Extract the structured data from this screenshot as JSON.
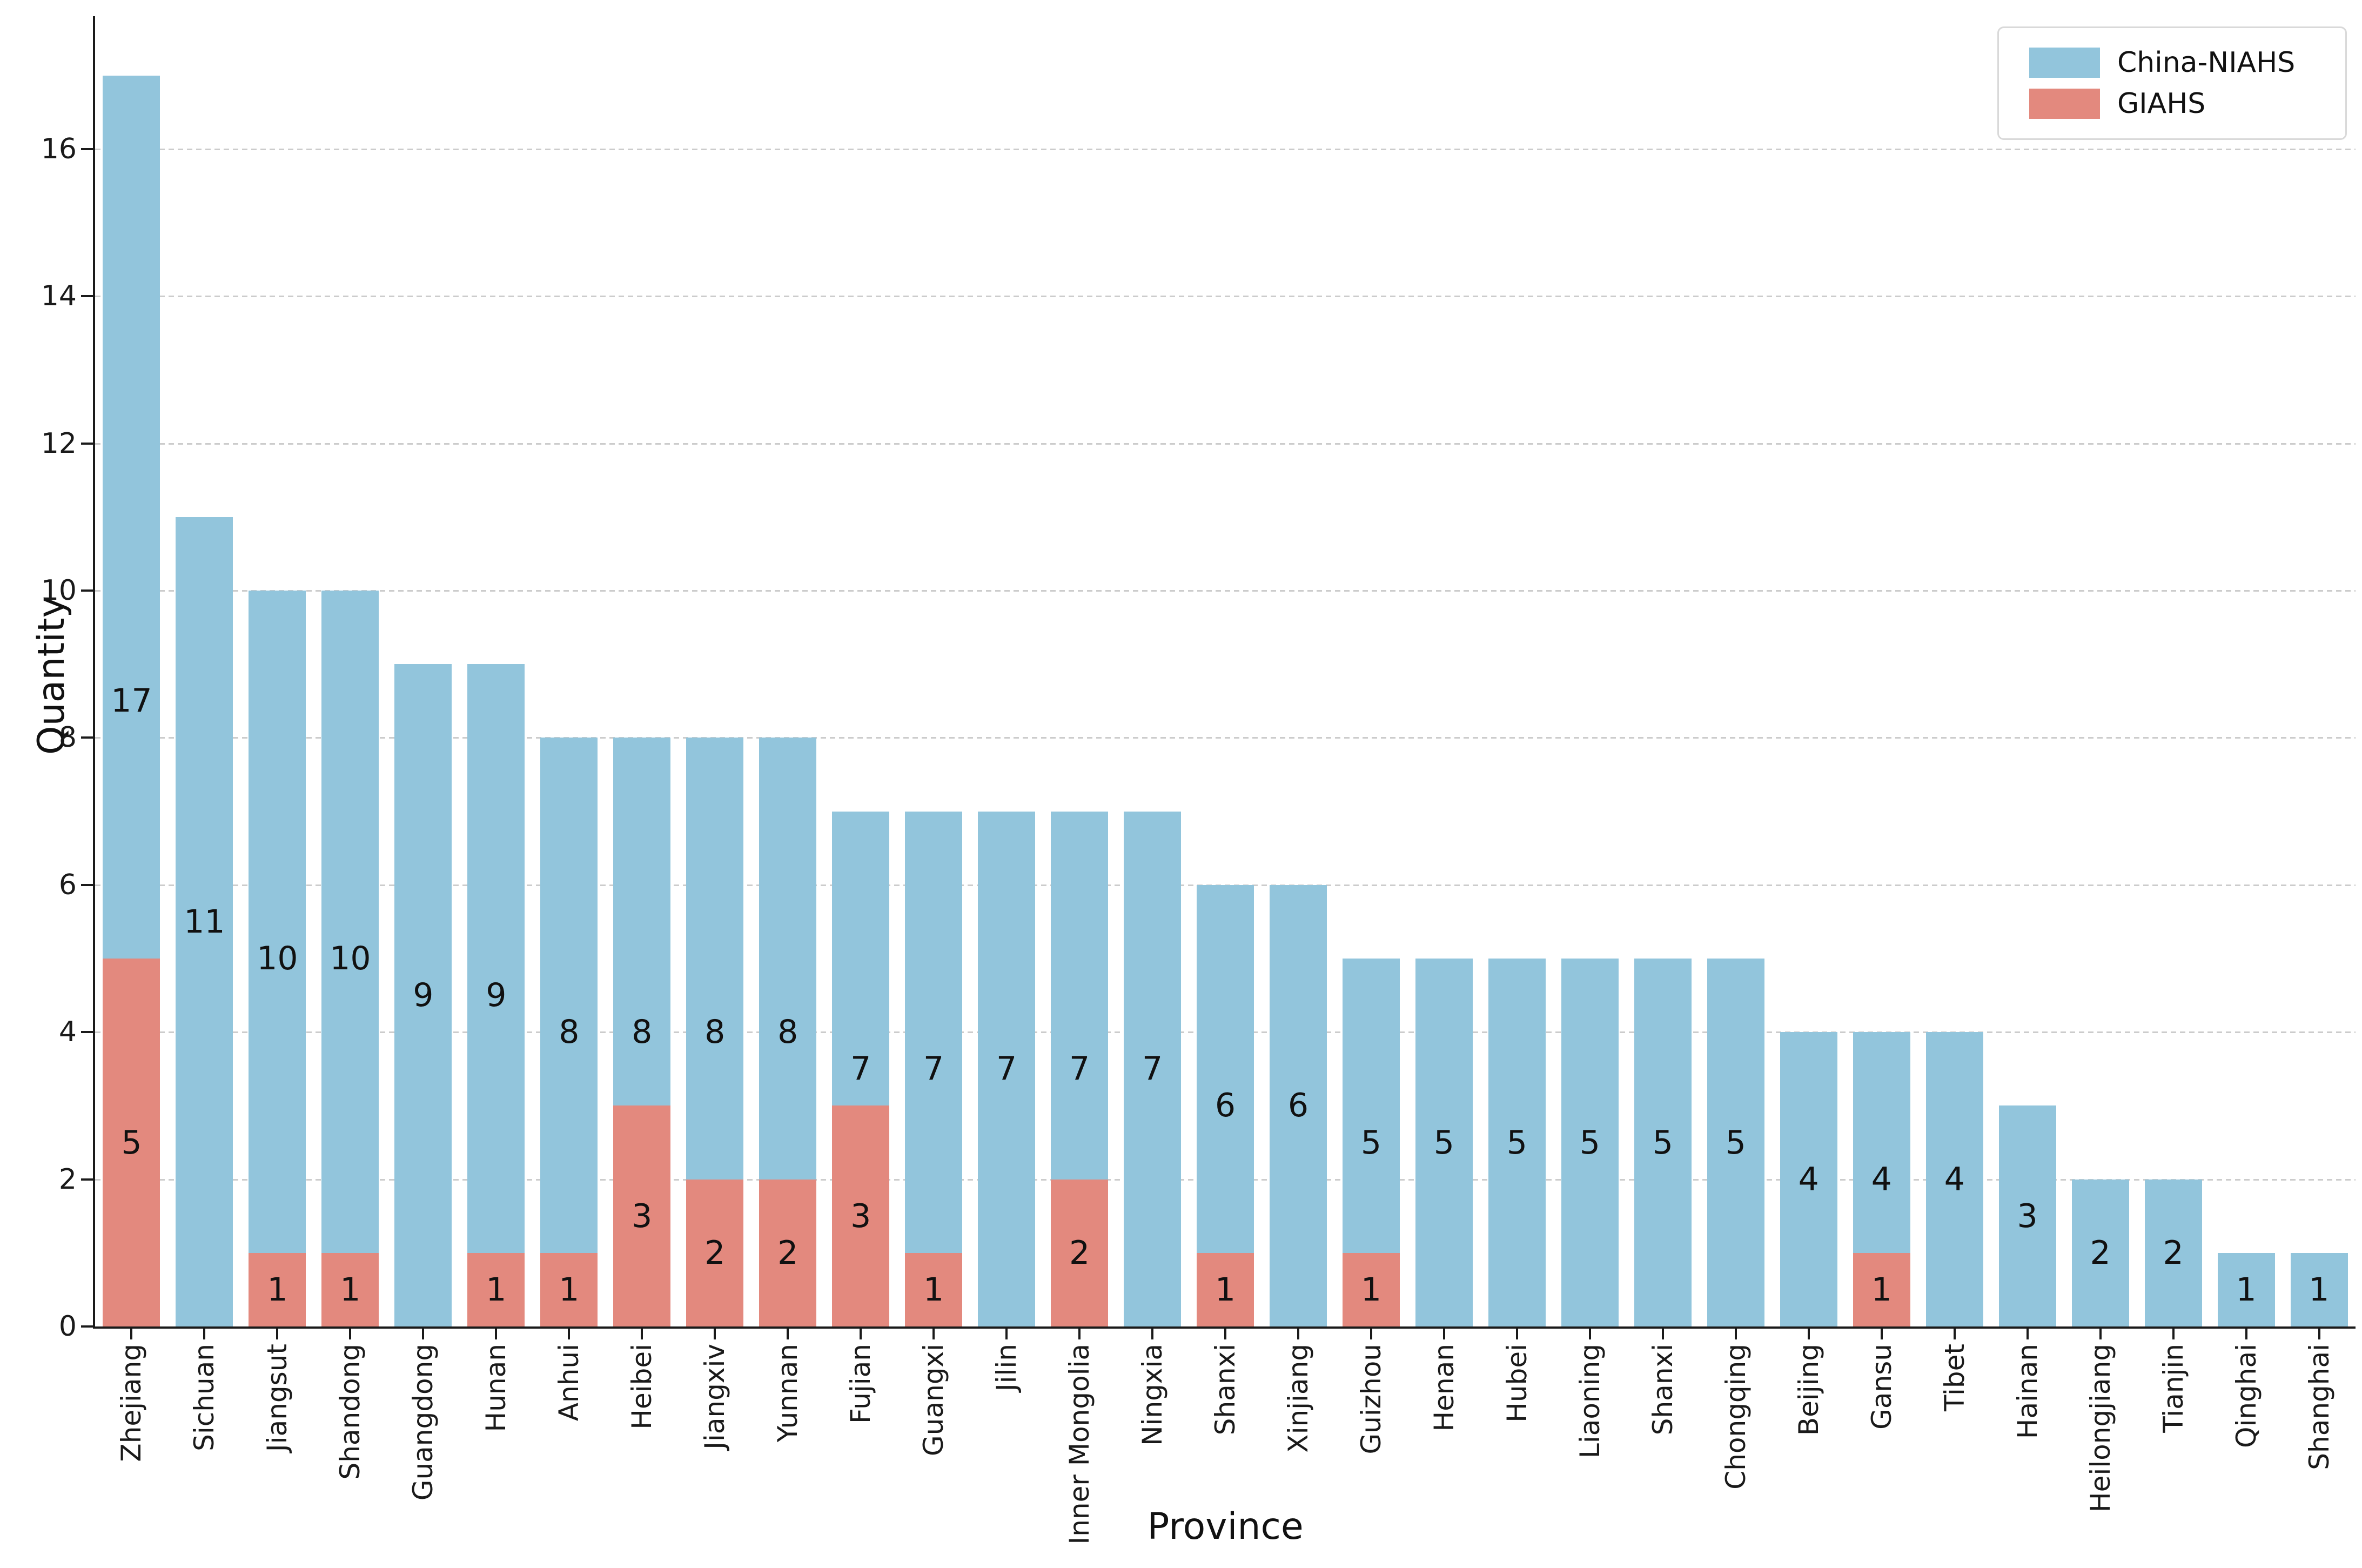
{
  "figure": {
    "background": "#ffffff"
  },
  "legend": {
    "position": "upper-right",
    "items": [
      {
        "label": "China-NIAHS",
        "color": "#92c5dc"
      },
      {
        "label": "GIAHS",
        "color": "#e3897e"
      }
    ]
  },
  "axes": {
    "xlabel": "Province",
    "ylabel": "Quantity",
    "yticks": [
      0,
      2,
      4,
      6,
      8,
      10,
      12,
      14,
      16
    ]
  },
  "chart_data": {
    "type": "bar",
    "mode": "overlay",
    "title": "",
    "xlabel": "Province",
    "ylabel": "Quantity",
    "ylim": [
      0,
      17.8
    ],
    "yticks": [
      0,
      2,
      4,
      6,
      8,
      10,
      12,
      14,
      16
    ],
    "grid": "horizontal-dashed",
    "gridcolor": "#cccccc",
    "legend_position": "upper-right",
    "bar_label_color": "#111111",
    "categories": [
      "Zhejiang",
      "Sichuan",
      "Jiangsut",
      "Shandong",
      "Guangdong",
      "Hunan",
      "Anhui",
      "Heibei",
      "Jiangxiv",
      "Yunnan",
      "Fujian",
      "Guangxi",
      "Jilin",
      "Inner Mongolia",
      "Ningxia",
      "Shanxi",
      "Xinjiang",
      "Guizhou",
      "Henan",
      "Hubei",
      "Liaoning",
      "Shanxi",
      "Chongqing",
      "Beijing",
      "Gansu",
      "Tibet",
      "Hainan",
      "Heilongjiang",
      "Tianjin",
      "Qinghai",
      "Shanghai"
    ],
    "series": [
      {
        "name": "China-NIAHS",
        "color": "#92c5dc",
        "values": [
          17,
          11,
          10,
          10,
          9,
          9,
          8,
          8,
          8,
          8,
          7,
          7,
          7,
          7,
          7,
          6,
          6,
          5,
          5,
          5,
          5,
          5,
          5,
          4,
          4,
          4,
          3,
          2,
          2,
          1,
          1
        ]
      },
      {
        "name": "GIAHS",
        "color": "#e3897e",
        "values": [
          5,
          0,
          1,
          1,
          0,
          1,
          1,
          3,
          2,
          2,
          3,
          1,
          0,
          2,
          0,
          1,
          0,
          1,
          0,
          0,
          0,
          0,
          0,
          0,
          1,
          0,
          0,
          0,
          0,
          0,
          0
        ]
      }
    ]
  }
}
